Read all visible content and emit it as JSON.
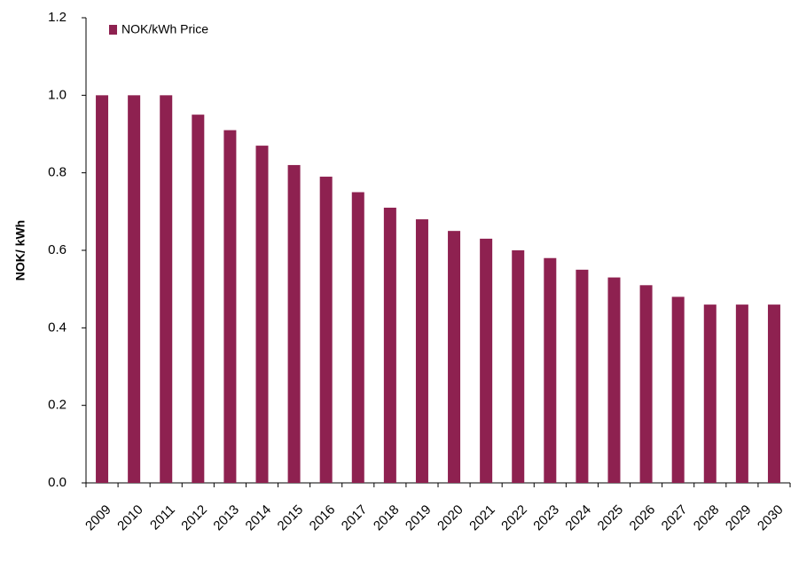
{
  "chart_data": {
    "type": "bar",
    "y_label": "NOK/ kWh",
    "categories": [
      "2009",
      "2010",
      "2011",
      "2012",
      "2013",
      "2014",
      "2015",
      "2016",
      "2017",
      "2018",
      "2019",
      "2020",
      "2021",
      "2022",
      "2023",
      "2024",
      "2025",
      "2026",
      "2027",
      "2028",
      "2029",
      "2030"
    ],
    "series": [
      {
        "name": "NOK/kWh Price",
        "color": "#8e2150",
        "values": [
          1.0,
          1.0,
          1.0,
          0.95,
          0.91,
          0.87,
          0.82,
          0.79,
          0.75,
          0.71,
          0.68,
          0.65,
          0.63,
          0.6,
          0.58,
          0.55,
          0.53,
          0.51,
          0.48,
          0.46,
          0.46,
          0.46
        ]
      }
    ],
    "ylim": [
      0,
      1.2
    ],
    "yticks": [
      {
        "value": 0,
        "label": "0.0"
      },
      0.2,
      0.4,
      0.6,
      0.8,
      {
        "value": 1,
        "label": "1.0"
      },
      1.2
    ],
    "legend": "top-left",
    "grid": false
  }
}
